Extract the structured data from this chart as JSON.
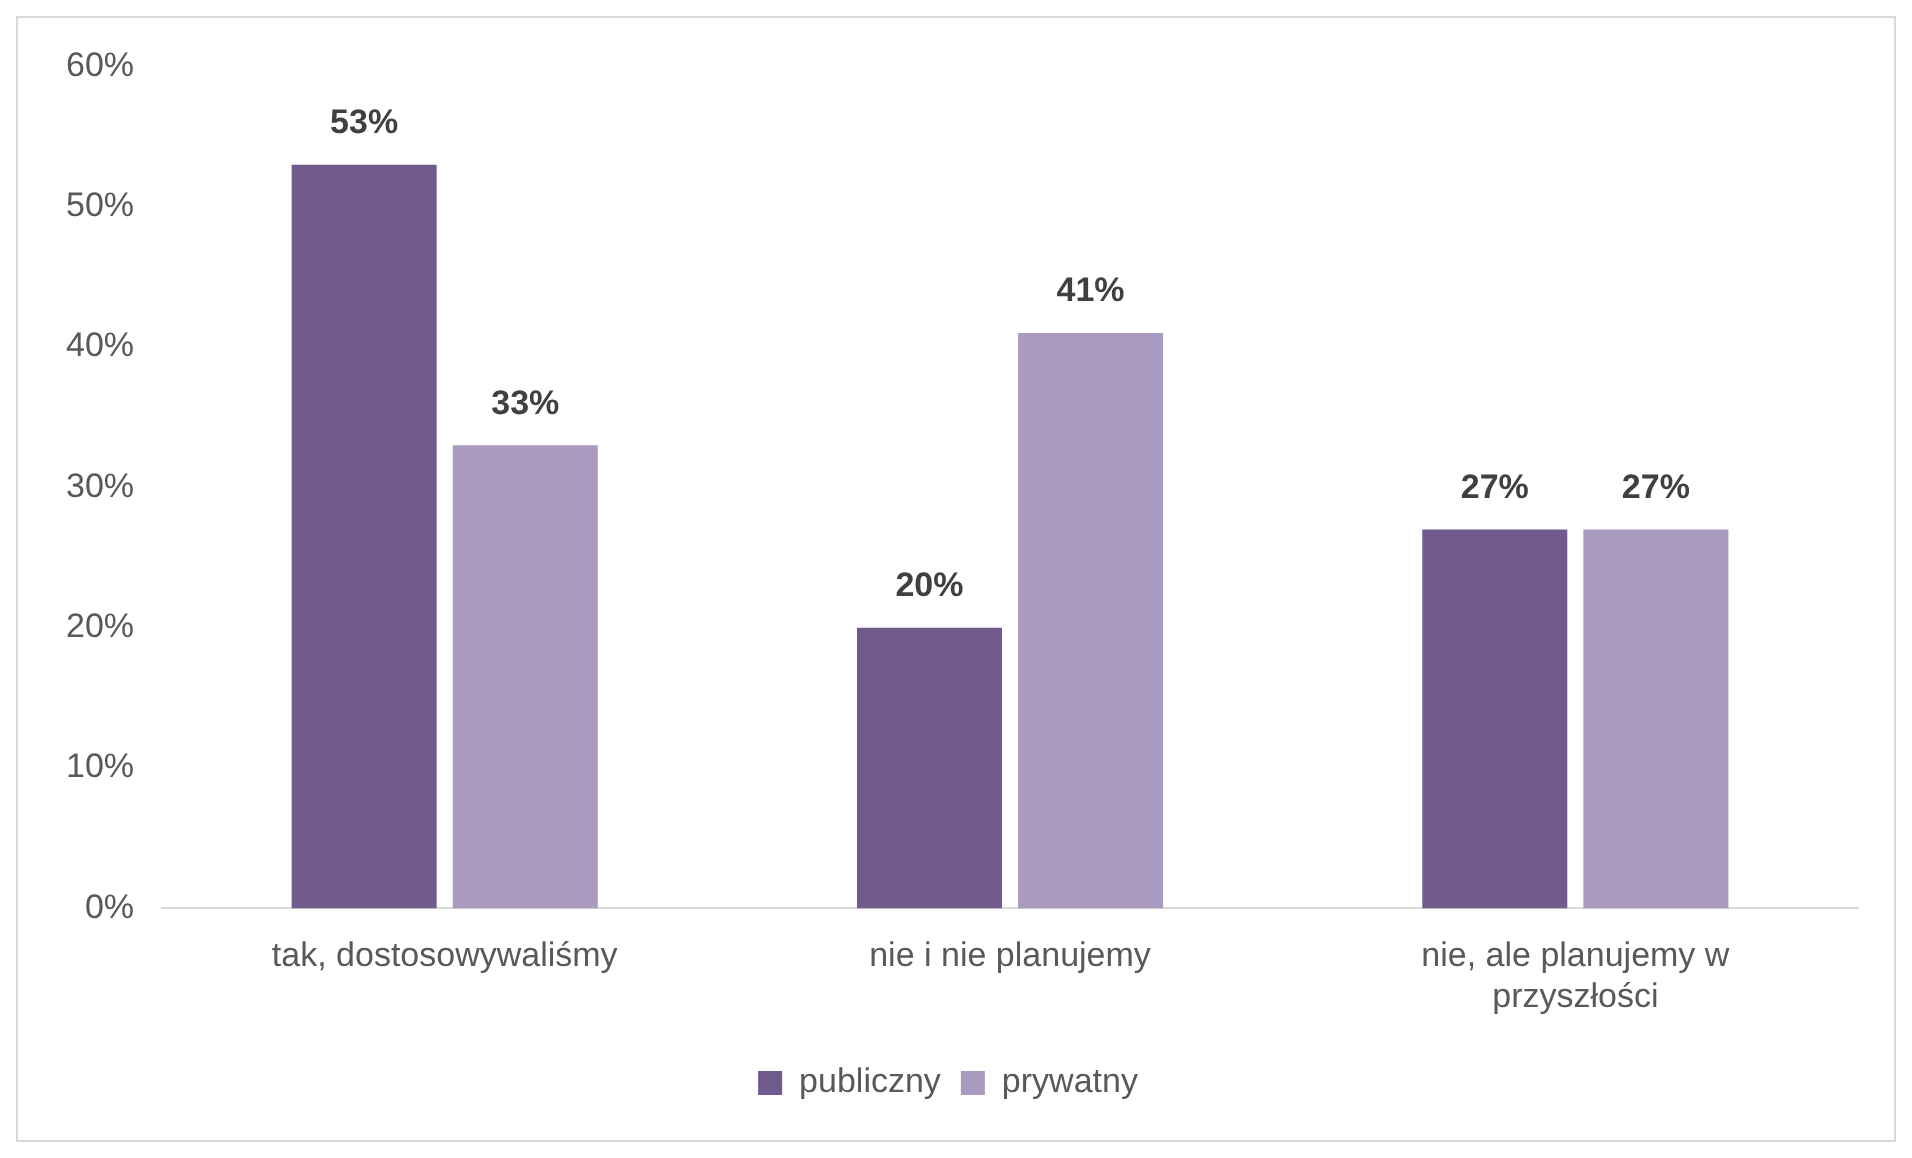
{
  "chart_data": {
    "type": "bar",
    "categories": [
      "tak, dostosowywaliśmy",
      "nie i nie planujemy",
      "nie, ale planujemy w przyszłości"
    ],
    "series": [
      {
        "name": "publiczny",
        "color": "#715a8e",
        "values": [
          53,
          20,
          27
        ],
        "value_labels": [
          "53%",
          "20%",
          "27%"
        ]
      },
      {
        "name": "prywatny",
        "color": "#a99bbf",
        "values": [
          33,
          41,
          27
        ],
        "value_labels": [
          "33%",
          "41%",
          "27%"
        ]
      }
    ],
    "ylim": [
      0,
      60
    ],
    "yticks": [
      {
        "value": 0,
        "label": "0%"
      },
      {
        "value": 10,
        "label": "10%"
      },
      {
        "value": 20,
        "label": "20%"
      },
      {
        "value": 30,
        "label": "30%"
      },
      {
        "value": 40,
        "label": "40%"
      },
      {
        "value": 50,
        "label": "50%"
      },
      {
        "value": 60,
        "label": "60%"
      }
    ],
    "grid": false,
    "legend": "bottom"
  }
}
